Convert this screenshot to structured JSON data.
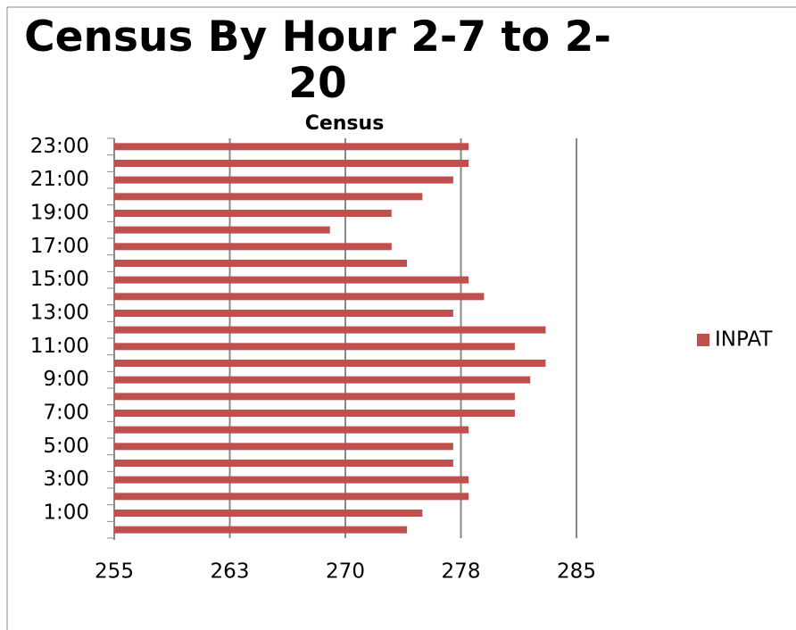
{
  "chart_data": {
    "type": "hbar",
    "title": "Census By Hour 2-7 to 2-20",
    "subtitle": "Census",
    "categories": [
      null,
      "1:00",
      null,
      "3:00",
      null,
      "5:00",
      null,
      "7:00",
      null,
      "9:00",
      null,
      "11:00",
      null,
      "13:00",
      null,
      "15:00",
      null,
      "17:00",
      null,
      "19:00",
      null,
      "21:00",
      null,
      "23:00"
    ],
    "series": [
      {
        "name": "INPAT",
        "color": "#c0504d",
        "values": [
          274,
          275,
          278,
          278,
          277,
          277,
          278,
          281,
          281,
          282,
          283,
          281,
          283,
          277,
          279,
          278,
          274,
          273,
          269,
          273,
          275,
          277,
          278,
          278
        ]
      }
    ],
    "xlim": [
      255,
      285
    ],
    "xticks": [
      255,
      {
        "value": 262.5,
        "label": "263"
      },
      270,
      {
        "value": 277.5,
        "label": "278"
      },
      285
    ],
    "grid": true,
    "legend": "right"
  }
}
